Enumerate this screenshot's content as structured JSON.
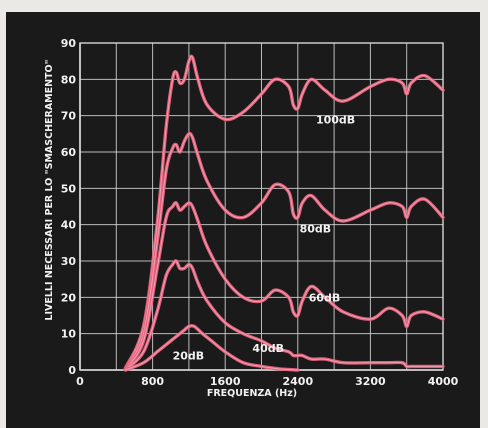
{
  "chart_data": {
    "type": "line",
    "title": "",
    "xlabel": "FREQUENZA (Hz)",
    "ylabel": "LIVELLI NECESSARI PER LO \"SMASCHERAMENTO\"",
    "xlim": [
      0,
      4000
    ],
    "ylim": [
      0,
      90
    ],
    "xticks": [
      "0",
      "800",
      "1600",
      "2400",
      "3200",
      "4000"
    ],
    "yticks": [
      "0",
      "10",
      "20",
      "30",
      "40",
      "50",
      "60",
      "70",
      "80",
      "90"
    ],
    "grid": true,
    "colors": {
      "curve": "#e8647e",
      "curve_highlight": "#f7b0c0",
      "grid": "#d8d8d8",
      "background": "#1a1a1b"
    },
    "series": [
      {
        "name": "100dB",
        "x": [
          500,
          700,
          850,
          950,
          1020,
          1060,
          1100,
          1150,
          1200,
          1240,
          1300,
          1400,
          1600,
          1800,
          2000,
          2150,
          2300,
          2350,
          2400,
          2450,
          2550,
          2700,
          2900,
          3200,
          3400,
          3550,
          3600,
          3650,
          3800,
          4000
        ],
        "y": [
          0.5,
          12,
          40,
          67,
          80,
          82,
          79,
          80,
          85,
          86,
          80,
          73,
          69,
          71,
          76,
          80,
          78,
          73,
          72,
          76,
          80,
          77,
          74,
          78,
          80,
          79,
          76,
          79,
          81,
          77
        ]
      },
      {
        "name": "80dB",
        "x": [
          500,
          700,
          850,
          950,
          1020,
          1060,
          1100,
          1150,
          1200,
          1240,
          1300,
          1400,
          1600,
          1800,
          2000,
          2150,
          2300,
          2350,
          2400,
          2450,
          2550,
          2700,
          2900,
          3200,
          3400,
          3550,
          3600,
          3650,
          3800,
          4000
        ],
        "y": [
          0.3,
          10,
          35,
          55,
          61,
          62,
          60,
          63,
          65,
          64,
          59,
          52,
          44,
          42,
          46,
          51,
          49,
          43,
          42,
          46,
          48,
          44,
          41,
          44,
          46,
          45,
          42,
          45,
          47,
          42
        ]
      },
      {
        "name": "60dB",
        "x": [
          500,
          700,
          850,
          950,
          1020,
          1060,
          1100,
          1150,
          1200,
          1240,
          1300,
          1400,
          1600,
          1800,
          2000,
          2150,
          2300,
          2350,
          2400,
          2450,
          2550,
          2700,
          2900,
          3200,
          3400,
          3550,
          3600,
          3650,
          3800,
          4000
        ],
        "y": [
          0.2,
          8,
          28,
          42,
          45,
          46,
          44,
          45,
          46,
          45,
          41,
          34,
          25,
          20,
          19,
          22,
          20,
          16,
          15,
          19,
          23,
          20,
          16,
          14,
          17,
          15,
          12,
          15,
          16,
          14
        ]
      },
      {
        "name": "40dB",
        "x": [
          500,
          700,
          850,
          950,
          1020,
          1060,
          1100,
          1150,
          1200,
          1240,
          1300,
          1400,
          1600,
          1800,
          2000,
          2150,
          2300,
          2350,
          2400,
          2450,
          2550,
          2700,
          2900,
          3200,
          3400,
          3550,
          3600,
          3650,
          3800,
          4000
        ],
        "y": [
          0.1,
          5,
          16,
          26,
          29,
          30,
          28,
          28,
          29,
          28,
          24,
          19,
          13,
          10,
          8,
          6,
          5,
          4,
          4,
          4,
          3,
          3,
          2,
          2,
          2,
          2,
          1,
          1,
          1,
          1
        ]
      },
      {
        "name": "20dB",
        "x": [
          500,
          700,
          850,
          950,
          1050,
          1150,
          1200,
          1260,
          1350,
          1450,
          1600,
          1800,
          2000,
          2200,
          2400
        ],
        "y": [
          0,
          2,
          5,
          7,
          9,
          11,
          12,
          12,
          10,
          8,
          5,
          2,
          1,
          0.3,
          0
        ]
      }
    ],
    "labels": [
      {
        "text": "100dB",
        "x": 2600,
        "y": 69
      },
      {
        "text": "80dB",
        "x": 2420,
        "y": 39
      },
      {
        "text": "60dB",
        "x": 2520,
        "y": 20
      },
      {
        "text": "40dB",
        "x": 1900,
        "y": 6
      },
      {
        "text": "20dB",
        "x": 1020,
        "y": 4
      }
    ]
  }
}
